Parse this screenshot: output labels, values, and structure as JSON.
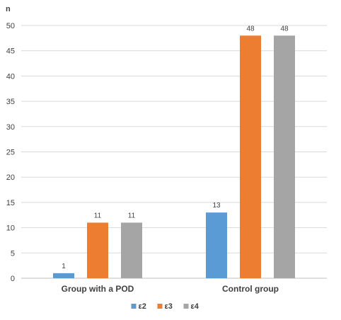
{
  "chart_data": {
    "type": "bar",
    "title": "",
    "xlabel": "",
    "ylabel": "n",
    "ylim": [
      0,
      50
    ],
    "yticks": [
      0,
      5,
      10,
      15,
      20,
      25,
      30,
      35,
      40,
      45,
      50
    ],
    "grid": true,
    "legend": "bottom",
    "categories": [
      "Group with a POD",
      "Control group"
    ],
    "series": [
      {
        "name": "ε2",
        "color": "#5b9bd5",
        "values": [
          1,
          13
        ]
      },
      {
        "name": "ε3",
        "color": "#ed7d31",
        "values": [
          11,
          48
        ]
      },
      {
        "name": "ε4",
        "color": "#a5a5a5",
        "values": [
          11,
          48
        ]
      }
    ]
  }
}
